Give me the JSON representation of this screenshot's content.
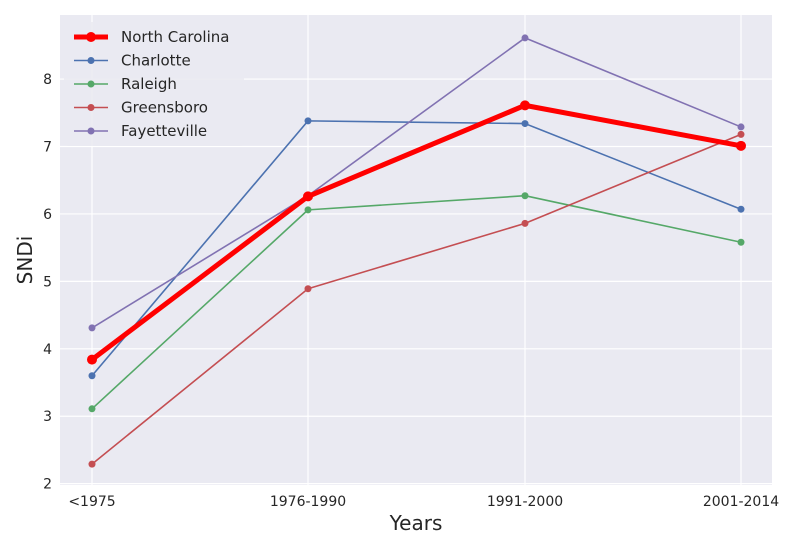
{
  "chart_data": {
    "type": "line",
    "title": "",
    "xlabel": "Years",
    "ylabel": "SNDi",
    "categories": [
      "<1975",
      "1976-1990",
      "1991-2000",
      "2001-2014"
    ],
    "ylim": [
      1.98,
      8.95
    ],
    "yticks": [
      2,
      3,
      4,
      5,
      6,
      7,
      8
    ],
    "grid": true,
    "legend_position": "top-left",
    "series": [
      {
        "name": "North Carolina",
        "values": [
          3.84,
          6.26,
          7.61,
          7.01
        ],
        "color": "#ff0000",
        "emphasis": true
      },
      {
        "name": "Charlotte",
        "values": [
          3.6,
          7.38,
          7.34,
          6.07
        ],
        "color": "#4c72b0"
      },
      {
        "name": "Raleigh",
        "values": [
          3.11,
          6.06,
          6.27,
          5.58
        ],
        "color": "#55a868"
      },
      {
        "name": "Greensboro",
        "values": [
          2.29,
          4.89,
          5.86,
          7.18
        ],
        "color": "#c44e52"
      },
      {
        "name": "Fayetteville",
        "values": [
          4.31,
          6.27,
          8.61,
          7.29
        ],
        "color": "#8172b2"
      }
    ]
  }
}
